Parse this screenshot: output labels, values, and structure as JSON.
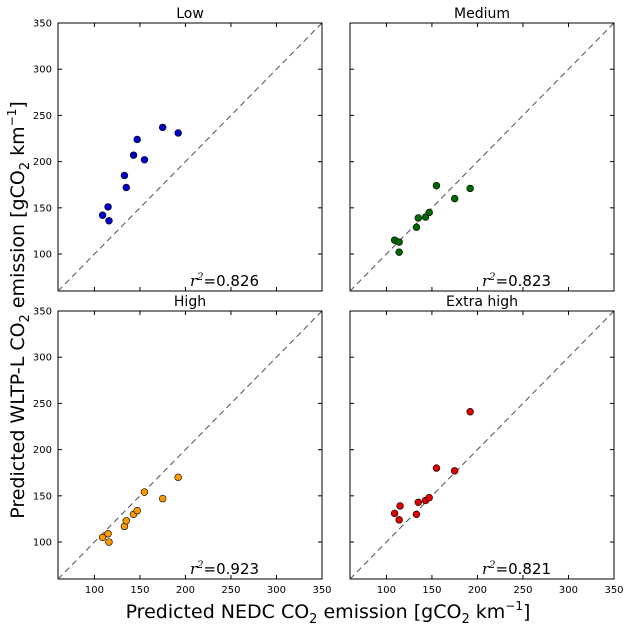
{
  "figure": {
    "xlabel_main": "Predicted NEDC CO",
    "xlabel_sub": "2",
    "xlabel_tail": " emission [gCO",
    "xlabel_sub2": "2",
    "xlabel_unit": " km",
    "xlabel_sup": "−1",
    "xlabel_close": "]",
    "ylabel_main": "Predicted WLTP-L  CO",
    "ylabel_sub": "2",
    "ylabel_tail": " emission [gCO",
    "ylabel_sub2": "2",
    "ylabel_unit": " km",
    "ylabel_sup": "−1",
    "ylabel_close": "]"
  },
  "chart_data": [
    {
      "type": "scatter",
      "title": "Low",
      "color": "#0000cc",
      "xlim": [
        60,
        350
      ],
      "ylim": [
        60,
        350
      ],
      "xticks": [
        100,
        150,
        200,
        250,
        300,
        350
      ],
      "yticks": [
        100,
        150,
        200,
        250,
        300,
        350
      ],
      "show_xticklabels": false,
      "show_yticklabels": true,
      "r2_label": "r",
      "r2_sup": "2",
      "r2_value": "=0.826",
      "points": [
        [
          109,
          142
        ],
        [
          115,
          151
        ],
        [
          116,
          136
        ],
        [
          133,
          185
        ],
        [
          135,
          172
        ],
        [
          143,
          207
        ],
        [
          147,
          224
        ],
        [
          155,
          202
        ],
        [
          175,
          237
        ],
        [
          192,
          231
        ]
      ]
    },
    {
      "type": "scatter",
      "title": "Medium",
      "color": "#006600",
      "xlim": [
        60,
        350
      ],
      "ylim": [
        60,
        350
      ],
      "xticks": [
        100,
        150,
        200,
        250,
        300,
        350
      ],
      "yticks": [
        100,
        150,
        200,
        250,
        300,
        350
      ],
      "show_xticklabels": false,
      "show_yticklabels": false,
      "r2_label": "r",
      "r2_sup": "2",
      "r2_value": "=0.823",
      "points": [
        [
          109,
          115
        ],
        [
          114,
          113
        ],
        [
          114,
          102
        ],
        [
          133,
          129
        ],
        [
          135,
          139
        ],
        [
          143,
          140
        ],
        [
          147,
          145
        ],
        [
          155,
          174
        ],
        [
          175,
          160
        ],
        [
          192,
          171
        ]
      ]
    },
    {
      "type": "scatter",
      "title": "High",
      "color": "#ff9900",
      "xlim": [
        60,
        350
      ],
      "ylim": [
        60,
        350
      ],
      "xticks": [
        100,
        150,
        200,
        250,
        300,
        350
      ],
      "yticks": [
        100,
        150,
        200,
        250,
        300,
        350
      ],
      "show_xticklabels": true,
      "show_yticklabels": true,
      "r2_label": "r",
      "r2_sup": "2",
      "r2_value": "=0.923",
      "points": [
        [
          109,
          105
        ],
        [
          115,
          109
        ],
        [
          116,
          100
        ],
        [
          133,
          117
        ],
        [
          135,
          123
        ],
        [
          143,
          130
        ],
        [
          147,
          134
        ],
        [
          155,
          154
        ],
        [
          175,
          147
        ],
        [
          192,
          170
        ]
      ]
    },
    {
      "type": "scatter",
      "title": "Extra high",
      "color": "#dd0000",
      "xlim": [
        60,
        350
      ],
      "ylim": [
        60,
        350
      ],
      "xticks": [
        100,
        150,
        200,
        250,
        300,
        350
      ],
      "yticks": [
        100,
        150,
        200,
        250,
        300,
        350
      ],
      "show_xticklabels": true,
      "show_yticklabels": false,
      "r2_label": "r",
      "r2_sup": "2",
      "r2_value": "=0.821",
      "points": [
        [
          109,
          131
        ],
        [
          114,
          124
        ],
        [
          115,
          139
        ],
        [
          133,
          130
        ],
        [
          135,
          143
        ],
        [
          143,
          145
        ],
        [
          147,
          148
        ],
        [
          155,
          180
        ],
        [
          175,
          177
        ],
        [
          192,
          241
        ]
      ]
    }
  ]
}
